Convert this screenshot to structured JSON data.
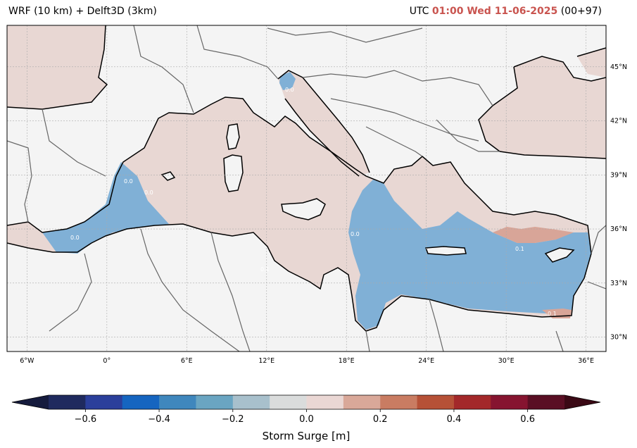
{
  "header": {
    "left_title": "WRF (10 km) + Delft3D (3km)",
    "right_prefix": "UTC",
    "right_time": "01:00 Wed 11-06-2025",
    "right_suffix": "(00+97)"
  },
  "map": {
    "extent_lon": [
      -7.5,
      37.5
    ],
    "extent_lat": [
      29.2,
      47.3
    ],
    "lon_ticks": [
      {
        "value": -6,
        "label": "6°W"
      },
      {
        "value": 0,
        "label": "0°"
      },
      {
        "value": 6,
        "label": "6°E"
      },
      {
        "value": 12,
        "label": "12°E"
      },
      {
        "value": 18,
        "label": "18°E"
      },
      {
        "value": 24,
        "label": "24°E"
      },
      {
        "value": 30,
        "label": "30°E"
      },
      {
        "value": 36,
        "label": "36°E"
      }
    ],
    "lat_ticks": [
      {
        "value": 45,
        "label": "45°N"
      },
      {
        "value": 42,
        "label": "42°N"
      },
      {
        "value": 39,
        "label": "39°N"
      },
      {
        "value": 36,
        "label": "36°N"
      },
      {
        "value": 33,
        "label": "33°N"
      },
      {
        "value": 30,
        "label": "30°N"
      }
    ],
    "gridlines": true,
    "colors": {
      "land": "#f4f4f4",
      "sea_neutral": "#e8d7d3",
      "surge_negative": "#7aaed6",
      "surge_positive": "#d8a598",
      "coastline": "#000000",
      "borders": "#666666"
    },
    "contour_labels": [
      "0.0",
      "0.0",
      "0.0",
      "0.0",
      "0.1",
      "0.1",
      "0.1",
      "0.0"
    ]
  },
  "colorbar": {
    "label": "Storm Surge [m]",
    "ticks": [
      {
        "value": -0.6,
        "label": "−0.6"
      },
      {
        "value": -0.4,
        "label": "−0.4"
      },
      {
        "value": -0.2,
        "label": "−0.2"
      },
      {
        "value": 0.0,
        "label": "0.0"
      },
      {
        "value": 0.2,
        "label": "0.2"
      },
      {
        "value": 0.4,
        "label": "0.4"
      },
      {
        "value": 0.6,
        "label": "0.6"
      }
    ],
    "range": [
      -0.7,
      0.7
    ],
    "extend": "both",
    "colors": [
      "#1f2a5e",
      "#2b3f9b",
      "#1565c0",
      "#3f87bd",
      "#6aa5c2",
      "#a8c0cc",
      "#dadcdc",
      "#ead7d4",
      "#d9a899",
      "#c97c62",
      "#b65137",
      "#a3282a",
      "#861430",
      "#5a0f24"
    ],
    "under_color": "#151b3d",
    "over_color": "#3a0915"
  }
}
